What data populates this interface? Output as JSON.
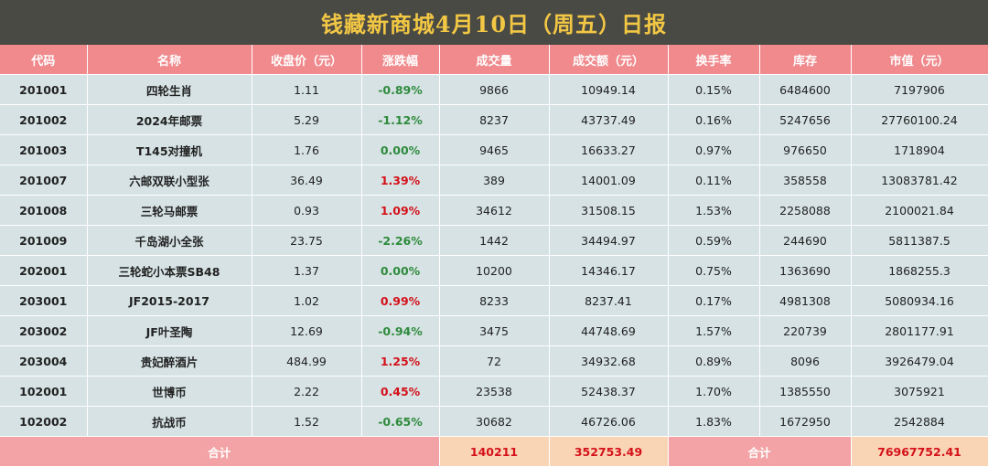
{
  "title": "钱藏新商城4月10日（周五）日报",
  "headers": [
    "代码",
    "名称",
    "收盘价（元）",
    "涨跌幅",
    "成交量",
    "成交额（元）",
    "换手率",
    "库存",
    "市值（元）"
  ],
  "rows": [
    {
      "code": "201001",
      "name": "四轮生肖",
      "close": "1.11",
      "change": "-0.89%",
      "dir": "down",
      "volume": "9866",
      "amount": "10949.14",
      "turnover": "0.15%",
      "stock": "6484600",
      "cap": "7197906"
    },
    {
      "code": "201002",
      "name": "2024年邮票",
      "close": "5.29",
      "change": "-1.12%",
      "dir": "down",
      "volume": "8237",
      "amount": "43737.49",
      "turnover": "0.16%",
      "stock": "5247656",
      "cap": "27760100.24"
    },
    {
      "code": "201003",
      "name": "T145对撞机",
      "close": "1.76",
      "change": "0.00%",
      "dir": "flat",
      "volume": "9465",
      "amount": "16633.27",
      "turnover": "0.97%",
      "stock": "976650",
      "cap": "1718904"
    },
    {
      "code": "201007",
      "name": "六邮双联小型张",
      "close": "36.49",
      "change": "1.39%",
      "dir": "up",
      "volume": "389",
      "amount": "14001.09",
      "turnover": "0.11%",
      "stock": "358558",
      "cap": "13083781.42"
    },
    {
      "code": "201008",
      "name": "三轮马邮票",
      "close": "0.93",
      "change": "1.09%",
      "dir": "up",
      "volume": "34612",
      "amount": "31508.15",
      "turnover": "1.53%",
      "stock": "2258088",
      "cap": "2100021.84"
    },
    {
      "code": "201009",
      "name": "千岛湖小全张",
      "close": "23.75",
      "change": "-2.26%",
      "dir": "down",
      "volume": "1442",
      "amount": "34494.97",
      "turnover": "0.59%",
      "stock": "244690",
      "cap": "5811387.5"
    },
    {
      "code": "202001",
      "name": "三轮蛇小本票SB48",
      "close": "1.37",
      "change": "0.00%",
      "dir": "flat",
      "volume": "10200",
      "amount": "14346.17",
      "turnover": "0.75%",
      "stock": "1363690",
      "cap": "1868255.3"
    },
    {
      "code": "203001",
      "name": "JF2015-2017",
      "close": "1.02",
      "change": "0.99%",
      "dir": "up",
      "volume": "8233",
      "amount": "8237.41",
      "turnover": "0.17%",
      "stock": "4981308",
      "cap": "5080934.16"
    },
    {
      "code": "203002",
      "name": "JF叶圣陶",
      "close": "12.69",
      "change": "-0.94%",
      "dir": "down",
      "volume": "3475",
      "amount": "44748.69",
      "turnover": "1.57%",
      "stock": "220739",
      "cap": "2801177.91"
    },
    {
      "code": "203004",
      "name": "贵妃醉酒片",
      "close": "484.99",
      "change": "1.25%",
      "dir": "up",
      "volume": "72",
      "amount": "34932.68",
      "turnover": "0.89%",
      "stock": "8096",
      "cap": "3926479.04"
    },
    {
      "code": "102001",
      "name": "世博币",
      "close": "2.22",
      "change": "0.45%",
      "dir": "up",
      "volume": "23538",
      "amount": "52438.37",
      "turnover": "1.70%",
      "stock": "1385550",
      "cap": "3075921"
    },
    {
      "code": "102002",
      "name": "抗战币",
      "close": "1.52",
      "change": "-0.65%",
      "dir": "down",
      "volume": "30682",
      "amount": "46726.06",
      "turnover": "1.83%",
      "stock": "1672950",
      "cap": "2542884"
    }
  ],
  "footer": {
    "label_left": "合计",
    "total_volume": "140211",
    "total_amount": "352753.49",
    "label_right": "合计",
    "total_cap": "76967752.41"
  },
  "colors": {
    "title_bg": "#4a4a44",
    "title_text": "#f2c744",
    "header_bg": "#f08a8d",
    "row_bg": "#d6e2e4",
    "up": "#d4111a",
    "down": "#2e8b3c"
  }
}
